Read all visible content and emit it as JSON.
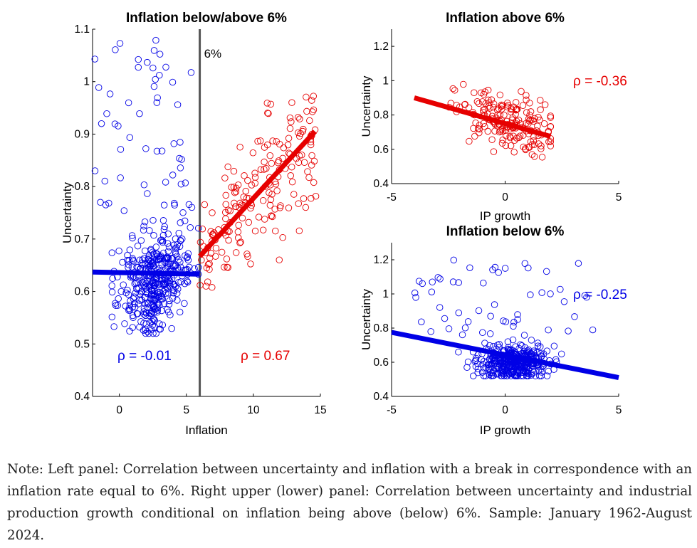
{
  "note": "Note: Left panel: Correlation between uncertainty and inflation with a break in correspondence with an inflation rate equal to 6%. Right upper (lower) panel: Correlation between uncertainty and industrial production growth conditional on inflation being above (below) 6%. Sample: January 1962-August 2024.",
  "colors": {
    "low": "#0000e6",
    "high": "#e60000",
    "threshold": "#555555"
  },
  "chart_data": [
    {
      "type": "scatter",
      "title": "Inflation below/above 6%",
      "xlabel": "Inflation",
      "ylabel": "Uncertainty",
      "xlim": [
        -2,
        15
      ],
      "ylim": [
        0.4,
        1.1
      ],
      "xticks": [
        "0",
        "5",
        "10",
        "15"
      ],
      "yticks": [
        "0.4",
        "0.5",
        "0.6",
        "0.7",
        "0.8",
        "0.9",
        "1",
        "1.1"
      ],
      "threshold": {
        "x": 6,
        "label": "6%"
      },
      "series": [
        {
          "color": "#0000e6",
          "side": "below",
          "count": 440,
          "x_range": [
            -2,
            6
          ],
          "y_center": 0.62,
          "fit": [
            [
              -2,
              0.637
            ],
            [
              6,
              0.633
            ]
          ],
          "rho_label": "ρ = -0.01"
        },
        {
          "color": "#e60000",
          "side": "above",
          "count": 190,
          "x_range": [
            6,
            14.8
          ],
          "y_center": 0.78,
          "fit": [
            [
              6,
              0.667
            ],
            [
              14.6,
              0.905
            ]
          ],
          "rho_label": "ρ = 0.67"
        }
      ]
    },
    {
      "type": "scatter",
      "title": "Inflation above 6%",
      "xlabel": "IP growth",
      "ylabel": "Uncertainty",
      "xlim": [
        -5,
        5
      ],
      "ylim": [
        0.4,
        1.3
      ],
      "xticks": [
        "-5",
        "0",
        "5"
      ],
      "yticks": [
        "0.4",
        "0.6",
        "0.8",
        "1",
        "1.2"
      ],
      "series": [
        {
          "color": "#e60000",
          "count": 190,
          "fit": [
            [
              -4,
              0.9
            ],
            [
              2,
              0.675
            ]
          ],
          "rho_label": "ρ = -0.36"
        }
      ]
    },
    {
      "type": "scatter",
      "title": "Inflation below 6%",
      "xlabel": "IP growth",
      "ylabel": "Uncertainty",
      "xlim": [
        -5,
        5
      ],
      "ylim": [
        0.4,
        1.3
      ],
      "xticks": [
        "-5",
        "0",
        "5"
      ],
      "yticks": [
        "0.4",
        "0.6",
        "0.8",
        "1",
        "1.2"
      ],
      "series": [
        {
          "color": "#0000e6",
          "count": 440,
          "fit": [
            [
              -5,
              0.775
            ],
            [
              5,
              0.51
            ]
          ],
          "rho_label": "ρ = -0.25"
        }
      ]
    }
  ]
}
